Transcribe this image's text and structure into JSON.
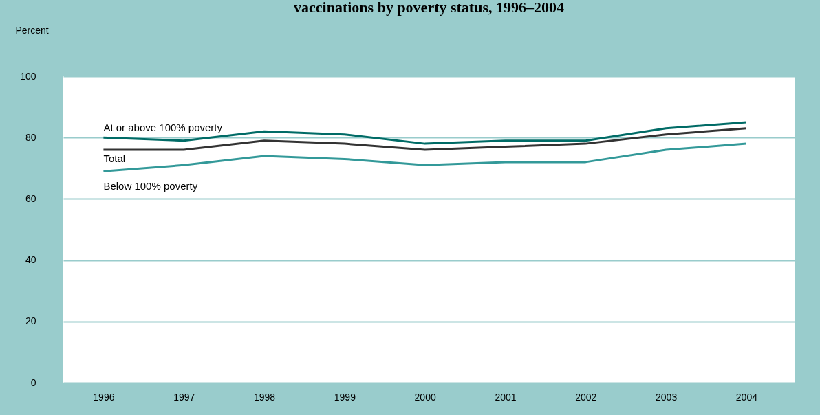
{
  "chart_data": {
    "type": "line",
    "title": "vaccinations by poverty status, 1996–2004",
    "ylabel": "Percent",
    "x": [
      1996,
      1997,
      1998,
      1999,
      2000,
      2001,
      2002,
      2003,
      2004
    ],
    "series": [
      {
        "name": "At or above 100% poverty",
        "color": "#006b66",
        "values": [
          80,
          79,
          82,
          81,
          78,
          79,
          79,
          83,
          85
        ]
      },
      {
        "name": "Total",
        "color": "#333333",
        "values": [
          76,
          76,
          79,
          78,
          76,
          77,
          78,
          81,
          83
        ]
      },
      {
        "name": "Below 100% poverty",
        "color": "#339999",
        "values": [
          69,
          71,
          74,
          73,
          71,
          72,
          72,
          76,
          78
        ]
      }
    ],
    "xlim": [
      1995.5,
      2004.6
    ],
    "xticks": [
      1996,
      1997,
      1998,
      1999,
      2000,
      2001,
      2002,
      2003,
      2004
    ],
    "ylim": [
      0,
      100
    ],
    "yticks": [
      0,
      20,
      40,
      60,
      80,
      100
    ],
    "grid": "y",
    "legend": false,
    "marker": "none",
    "line_style": "solid"
  }
}
